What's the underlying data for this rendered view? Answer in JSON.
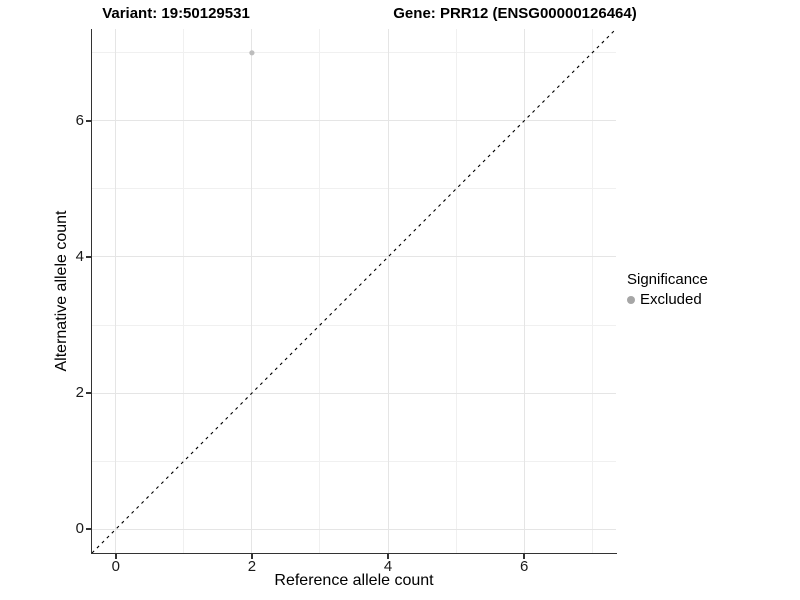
{
  "titles": {
    "variant": "Variant: 19:50129531",
    "gene": "Gene: PRR12 (ENSG00000126464)"
  },
  "legend": {
    "title": "Significance",
    "items": [
      {
        "label": "Excluded",
        "color": "#a6a6a6"
      }
    ]
  },
  "chart_data": {
    "type": "scatter",
    "title": "Variant: 19:50129531",
    "subtitle": "Gene: PRR12 (ENSG00000126464)",
    "xlabel": "Reference allele count",
    "ylabel": "Alternative allele count",
    "xlim": [
      -0.35,
      7.35
    ],
    "ylim": [
      -0.35,
      7.35
    ],
    "x_major_ticks": [
      0,
      2,
      4,
      6
    ],
    "x_minor_ticks": [
      1,
      3,
      5,
      7
    ],
    "y_major_ticks": [
      0,
      2,
      4,
      6
    ],
    "y_minor_ticks": [
      1,
      3,
      5,
      7
    ],
    "grid": true,
    "legend_position": "right",
    "legend_title": "Significance",
    "series": [
      {
        "name": "Excluded",
        "color": "#bdbdbd",
        "point_radius": 2.6,
        "points": [
          {
            "x": 2,
            "y": 7
          }
        ]
      }
    ],
    "reference_line": {
      "type": "identity",
      "equation": "y = x",
      "style": "dashed",
      "color": "#000000"
    }
  }
}
